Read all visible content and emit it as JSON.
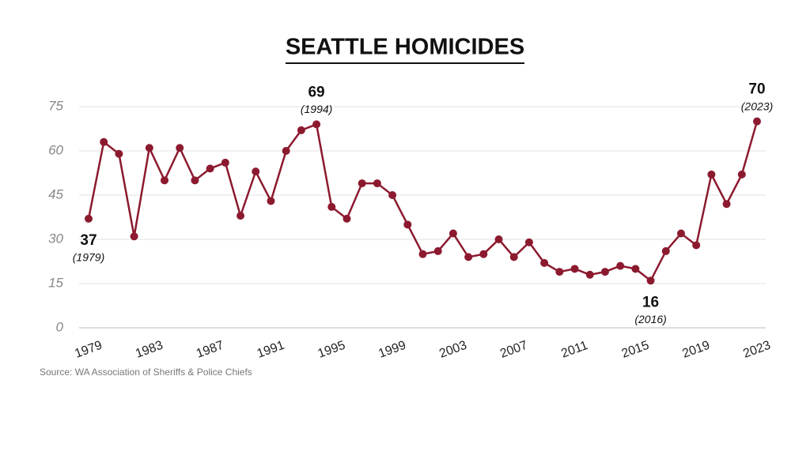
{
  "chart_data": {
    "type": "line",
    "title": "SEATTLE HOMICIDES",
    "source": "Source: WA Association of Sheriffs & Police Chiefs",
    "x": [
      1979,
      1980,
      1981,
      1982,
      1983,
      1984,
      1985,
      1986,
      1987,
      1988,
      1989,
      1990,
      1991,
      1992,
      1993,
      1994,
      1995,
      1996,
      1997,
      1998,
      1999,
      2000,
      2001,
      2002,
      2003,
      2004,
      2005,
      2006,
      2007,
      2008,
      2009,
      2010,
      2011,
      2012,
      2013,
      2014,
      2015,
      2016,
      2017,
      2018,
      2019,
      2020,
      2021,
      2022,
      2023
    ],
    "series": [
      {
        "name": "Homicides",
        "color": "#8c1a2f",
        "values": [
          37,
          63,
          59,
          31,
          61,
          50,
          61,
          50,
          54,
          56,
          38,
          53,
          43,
          60,
          67,
          69,
          41,
          37,
          49,
          49,
          45,
          35,
          25,
          26,
          32,
          24,
          25,
          30,
          24,
          29,
          22,
          19,
          20,
          18,
          19,
          21,
          20,
          16,
          26,
          32,
          28,
          52,
          42,
          52,
          70
        ]
      }
    ],
    "xlim": [
      1979,
      2023
    ],
    "xticks": [
      1979,
      1983,
      1987,
      1991,
      1995,
      1999,
      2003,
      2007,
      2011,
      2015,
      2019,
      2023
    ],
    "ylim": [
      0,
      75
    ],
    "yticks": [
      0,
      15,
      30,
      45,
      60,
      75
    ],
    "grid": true,
    "annotations": [
      {
        "x": 1979,
        "y": 37,
        "label": "(1979)",
        "position": "below"
      },
      {
        "x": 1994,
        "y": 69,
        "label": "(1994)",
        "position": "above"
      },
      {
        "x": 2016,
        "y": 16,
        "label": "(2016)",
        "position": "below"
      },
      {
        "x": 2023,
        "y": 70,
        "label": "(2023)",
        "position": "above"
      }
    ]
  }
}
